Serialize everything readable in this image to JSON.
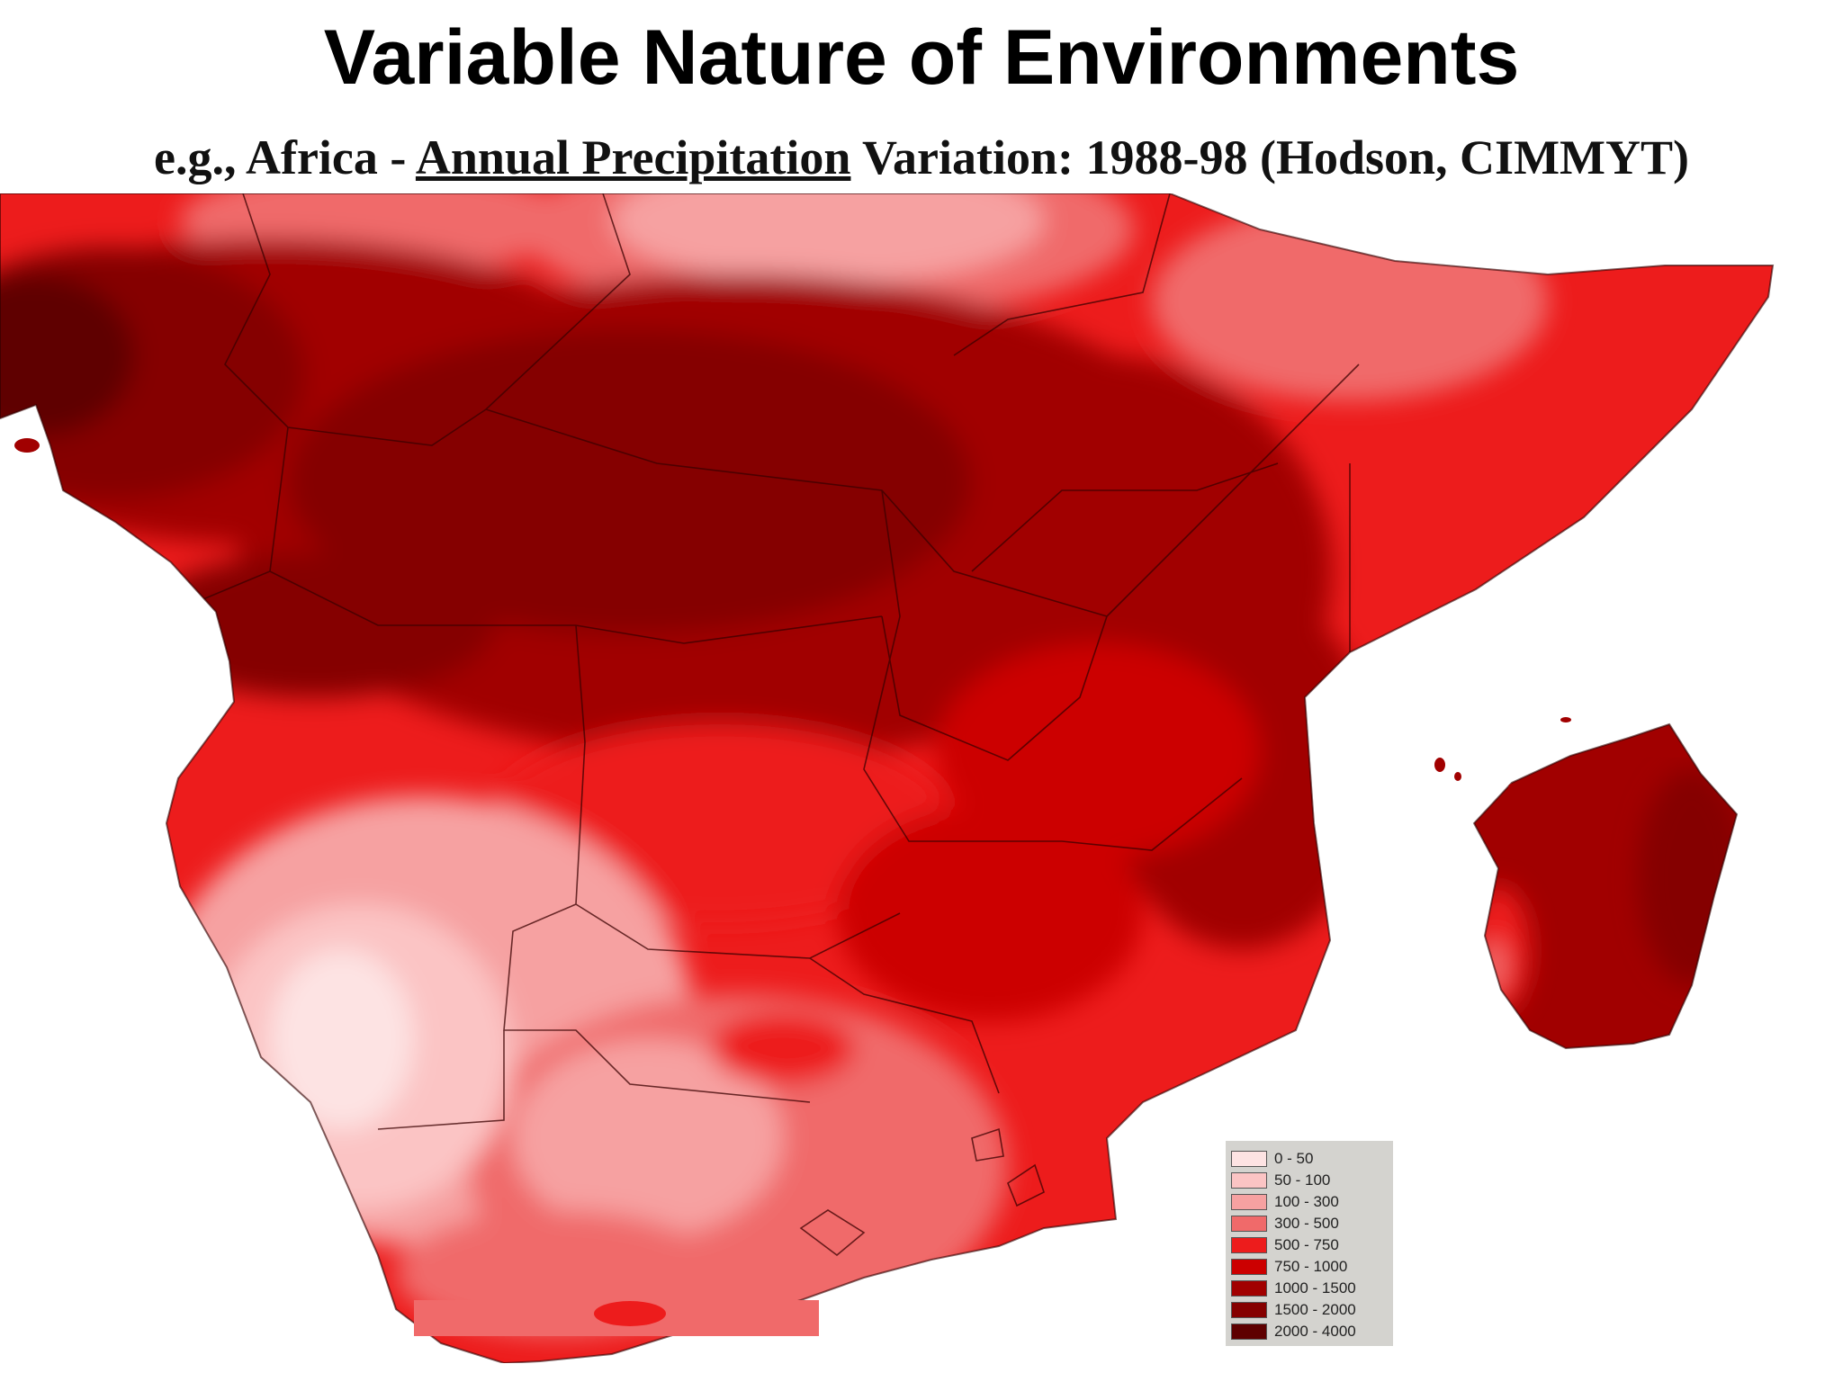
{
  "title": "Variable Nature of Environments",
  "subtitle": {
    "prefix": "e.g., Africa - ",
    "underlined": "Annual Precipitation",
    "suffix": " Variation: 1988-98 (Hodson, CIMMYT)"
  },
  "legend": [
    {
      "label": "0 - 50",
      "color": "#fde3e3"
    },
    {
      "label": "50 - 100",
      "color": "#fbc4c4"
    },
    {
      "label": "100 - 300",
      "color": "#f6a1a1"
    },
    {
      "label": "300 - 500",
      "color": "#f06a6a"
    },
    {
      "label": "500 - 750",
      "color": "#ed1c1c"
    },
    {
      "label": "750 - 1000",
      "color": "#cc0000"
    },
    {
      "label": "1000 - 1500",
      "color": "#a10000"
    },
    {
      "label": "1500 - 2000",
      "color": "#850000"
    },
    {
      "label": "2000 - 4000",
      "color": "#5e0000"
    }
  ]
}
